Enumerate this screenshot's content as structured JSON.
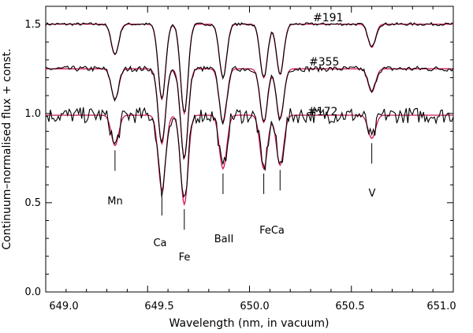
{
  "chart_data": {
    "type": "line",
    "xlabel": "Wavelength (nm, in vacuum)",
    "ylabel": "Continuum–normalised flux + const.",
    "xlim": [
      649.0,
      651.0
    ],
    "ylim": [
      0.0,
      1.6
    ],
    "x_ticks": [
      "649.0",
      "649.5",
      "650.0",
      "650.5",
      "651.0"
    ],
    "y_ticks": [
      "0.0",
      "0.5",
      "1.0",
      "1.5"
    ],
    "grid": false,
    "colors": {
      "observed": "#000000",
      "model": "#d1164f"
    },
    "series": [
      {
        "name": "#191",
        "offset": 1.5,
        "depth": 1.0,
        "noise": 0.008
      },
      {
        "name": "#355",
        "offset": 1.25,
        "depth": 1.0,
        "noise": 0.015
      },
      {
        "name": "#172",
        "offset": 0.99,
        "depth": 1.0,
        "noise": 0.045
      }
    ],
    "lines": [
      {
        "label": "Mn",
        "wavelength": 649.34,
        "depth": 0.17
      },
      {
        "label": "Ca",
        "wavelength": 649.57,
        "depth": 0.42
      },
      {
        "label": "Fe",
        "wavelength": 649.68,
        "depth": 0.5
      },
      {
        "label": "BaII",
        "wavelength": 649.87,
        "depth": 0.3
      },
      {
        "label": "Fe",
        "wavelength": 650.07,
        "depth": 0.3
      },
      {
        "label": "Ca",
        "wavelength": 650.15,
        "depth": 0.28
      },
      {
        "label": "V",
        "wavelength": 650.6,
        "depth": 0.13
      }
    ],
    "annotations": [
      "Mn",
      "Ca",
      "Fe",
      "BaII",
      "FeCa",
      "V"
    ]
  }
}
